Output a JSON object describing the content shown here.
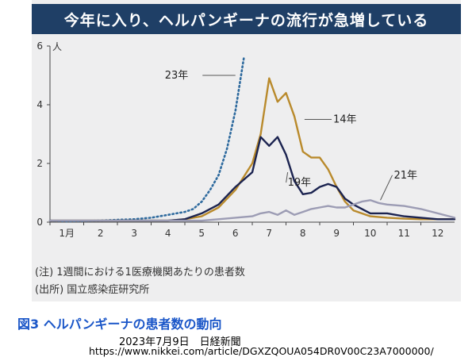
{
  "title": "今年に入り、ヘルパンギーナの流行が急増している",
  "chart_data": {
    "type": "line",
    "y_unit": "人",
    "ylim": [
      0,
      6
    ],
    "y_ticks": [
      0,
      2,
      4,
      6
    ],
    "xlim": [
      1,
      13
    ],
    "x_ticks": [
      {
        "v": 1,
        "label": "1月"
      },
      {
        "v": 2,
        "label": "2"
      },
      {
        "v": 3,
        "label": "3"
      },
      {
        "v": 4,
        "label": "4"
      },
      {
        "v": 5,
        "label": "5"
      },
      {
        "v": 6,
        "label": "6"
      },
      {
        "v": 7,
        "label": "7"
      },
      {
        "v": 8,
        "label": "8"
      },
      {
        "v": 9,
        "label": "9"
      },
      {
        "v": 10,
        "label": "10"
      },
      {
        "v": 11,
        "label": "11"
      },
      {
        "v": 12,
        "label": "12"
      }
    ],
    "grid": false,
    "series": [
      {
        "name": "23年",
        "color": "#2e6a9e",
        "dash": "dotted",
        "x": [
          1.0,
          1.5,
          2.0,
          2.5,
          3.0,
          3.5,
          4.0,
          4.25,
          4.5,
          4.75,
          5.0,
          5.25,
          5.5,
          5.75,
          6.0,
          6.25,
          6.5,
          6.75
        ],
        "y": [
          0.05,
          0.03,
          0.04,
          0.05,
          0.08,
          0.1,
          0.15,
          0.2,
          0.25,
          0.3,
          0.35,
          0.45,
          0.7,
          1.1,
          1.6,
          2.5,
          3.8,
          5.6
        ]
      },
      {
        "name": "14年",
        "color": "#b98a2c",
        "dash": "solid",
        "x": [
          1.0,
          2.0,
          3.0,
          4.0,
          4.5,
          5.0,
          5.5,
          6.0,
          6.5,
          7.0,
          7.25,
          7.5,
          7.75,
          8.0,
          8.25,
          8.5,
          8.75,
          9.0,
          9.25,
          9.5,
          9.75,
          10.0,
          10.5,
          11.0,
          11.5,
          12.0,
          12.5,
          13.0
        ],
        "y": [
          0.05,
          0.05,
          0.05,
          0.05,
          0.05,
          0.1,
          0.2,
          0.5,
          1.1,
          2.0,
          3.0,
          4.9,
          4.1,
          4.4,
          3.6,
          2.4,
          2.2,
          2.2,
          1.8,
          1.2,
          0.7,
          0.4,
          0.2,
          0.15,
          0.12,
          0.1,
          0.1,
          0.1
        ]
      },
      {
        "name": "19年",
        "color": "#1b2350",
        "dash": "solid",
        "x": [
          1.0,
          2.0,
          3.0,
          4.0,
          4.5,
          5.0,
          5.5,
          6.0,
          6.5,
          7.0,
          7.25,
          7.5,
          7.75,
          8.0,
          8.25,
          8.5,
          8.75,
          9.0,
          9.25,
          9.5,
          9.75,
          10.0,
          10.5,
          11.0,
          11.5,
          12.0,
          12.5,
          13.0
        ],
        "y": [
          0.05,
          0.05,
          0.05,
          0.05,
          0.05,
          0.1,
          0.3,
          0.6,
          1.2,
          1.7,
          2.9,
          2.6,
          2.9,
          2.3,
          1.4,
          0.95,
          1.0,
          1.2,
          1.3,
          1.2,
          0.8,
          0.6,
          0.3,
          0.3,
          0.2,
          0.15,
          0.1,
          0.1
        ]
      },
      {
        "name": "21年",
        "color": "#9c9cb4",
        "dash": "solid",
        "x": [
          1.0,
          2.0,
          3.0,
          4.0,
          5.0,
          5.5,
          6.0,
          6.5,
          7.0,
          7.25,
          7.5,
          7.75,
          8.0,
          8.25,
          8.5,
          8.75,
          9.0,
          9.25,
          9.5,
          9.75,
          10.0,
          10.25,
          10.5,
          10.75,
          11.0,
          11.5,
          12.0,
          12.5,
          13.0
        ],
        "y": [
          0.05,
          0.05,
          0.05,
          0.05,
          0.05,
          0.05,
          0.1,
          0.15,
          0.2,
          0.3,
          0.35,
          0.25,
          0.4,
          0.25,
          0.35,
          0.45,
          0.5,
          0.55,
          0.5,
          0.5,
          0.6,
          0.7,
          0.75,
          0.65,
          0.6,
          0.55,
          0.45,
          0.3,
          0.15
        ]
      }
    ],
    "series_labels": [
      {
        "text": "23年",
        "x": 5.1,
        "y": 5.0,
        "line_to": [
          6.5,
          5.0
        ]
      },
      {
        "text": "14年",
        "x": 9.4,
        "y": 3.5,
        "line_to": [
          8.55,
          3.5
        ]
      },
      {
        "text": "19年",
        "x": 8.05,
        "y": 1.35,
        "line_to": [
          8.05,
          1.7
        ]
      },
      {
        "text": "21年",
        "x": 11.2,
        "y": 1.6,
        "line_to": [
          10.8,
          0.75
        ]
      }
    ]
  },
  "notes": {
    "note_line": "(注) 1週間における1医療機関あたりの患者数",
    "source_line": "(出所) 国立感染症研究所"
  },
  "caption": "図3  ヘルパンギーナの患者数の動向",
  "source": {
    "date": "2023年7月9日　日経新聞",
    "url": "https://www.nikkei.com/article/DGXZQOUA054DR0V00C23A7000000/"
  }
}
